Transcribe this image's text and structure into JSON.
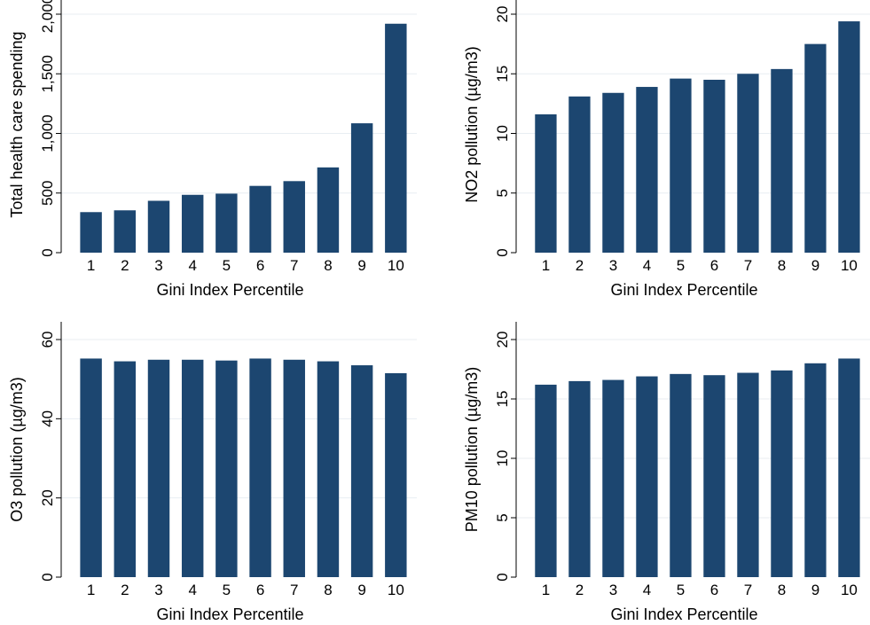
{
  "colors": {
    "bar": "#1c4670",
    "grid": "#e8eef2",
    "axis": "#000000",
    "background": "#ffffff"
  },
  "chart_data": [
    {
      "type": "bar",
      "categories": [
        "1",
        "2",
        "3",
        "4",
        "5",
        "6",
        "7",
        "8",
        "9",
        "10"
      ],
      "values": [
        340,
        355,
        435,
        485,
        495,
        560,
        600,
        715,
        1085,
        1920
      ],
      "title": "",
      "xlabel": "Gini Index Percentile",
      "ylabel": "Total health care spending",
      "ylim": [
        0,
        2000
      ],
      "yticks": [
        0,
        500,
        1000,
        1500,
        2000
      ],
      "ytick_labels": [
        "0",
        "500",
        "1,000",
        "1,500",
        "2,000"
      ],
      "grid": true
    },
    {
      "type": "bar",
      "categories": [
        "1",
        "2",
        "3",
        "4",
        "5",
        "6",
        "7",
        "8",
        "9",
        "10"
      ],
      "values": [
        11.6,
        13.1,
        13.4,
        13.9,
        14.6,
        14.5,
        15.0,
        15.4,
        17.5,
        19.4
      ],
      "title": "",
      "xlabel": "Gini Index Percentile",
      "ylabel": "NO2 pollution (µg/m3)",
      "ylim": [
        0,
        20
      ],
      "yticks": [
        0,
        5,
        10,
        15,
        20
      ],
      "ytick_labels": [
        "0",
        "5",
        "10",
        "15",
        "20"
      ],
      "grid": true
    },
    {
      "type": "bar",
      "categories": [
        "1",
        "2",
        "3",
        "4",
        "5",
        "6",
        "7",
        "8",
        "9",
        "10"
      ],
      "values": [
        55.2,
        54.5,
        54.9,
        54.9,
        54.7,
        55.2,
        54.9,
        54.5,
        53.5,
        51.5
      ],
      "title": "",
      "xlabel": "Gini Index Percentile",
      "ylabel": "O3 pollution (µg/m3)",
      "ylim": [
        0,
        60
      ],
      "yticks": [
        0,
        20,
        40,
        60
      ],
      "ytick_labels": [
        "0",
        "20",
        "40",
        "60"
      ],
      "grid": true
    },
    {
      "type": "bar",
      "categories": [
        "1",
        "2",
        "3",
        "4",
        "5",
        "6",
        "7",
        "8",
        "9",
        "10"
      ],
      "values": [
        16.2,
        16.5,
        16.6,
        16.9,
        17.1,
        17.0,
        17.2,
        17.4,
        18.0,
        18.4
      ],
      "title": "",
      "xlabel": "Gini Index Percentile",
      "ylabel": "PM10 pollution (µg/m3)",
      "ylim": [
        0,
        20
      ],
      "yticks": [
        0,
        5,
        10,
        15,
        20
      ],
      "ytick_labels": [
        "0",
        "5",
        "10",
        "15",
        "20"
      ],
      "grid": true
    }
  ]
}
